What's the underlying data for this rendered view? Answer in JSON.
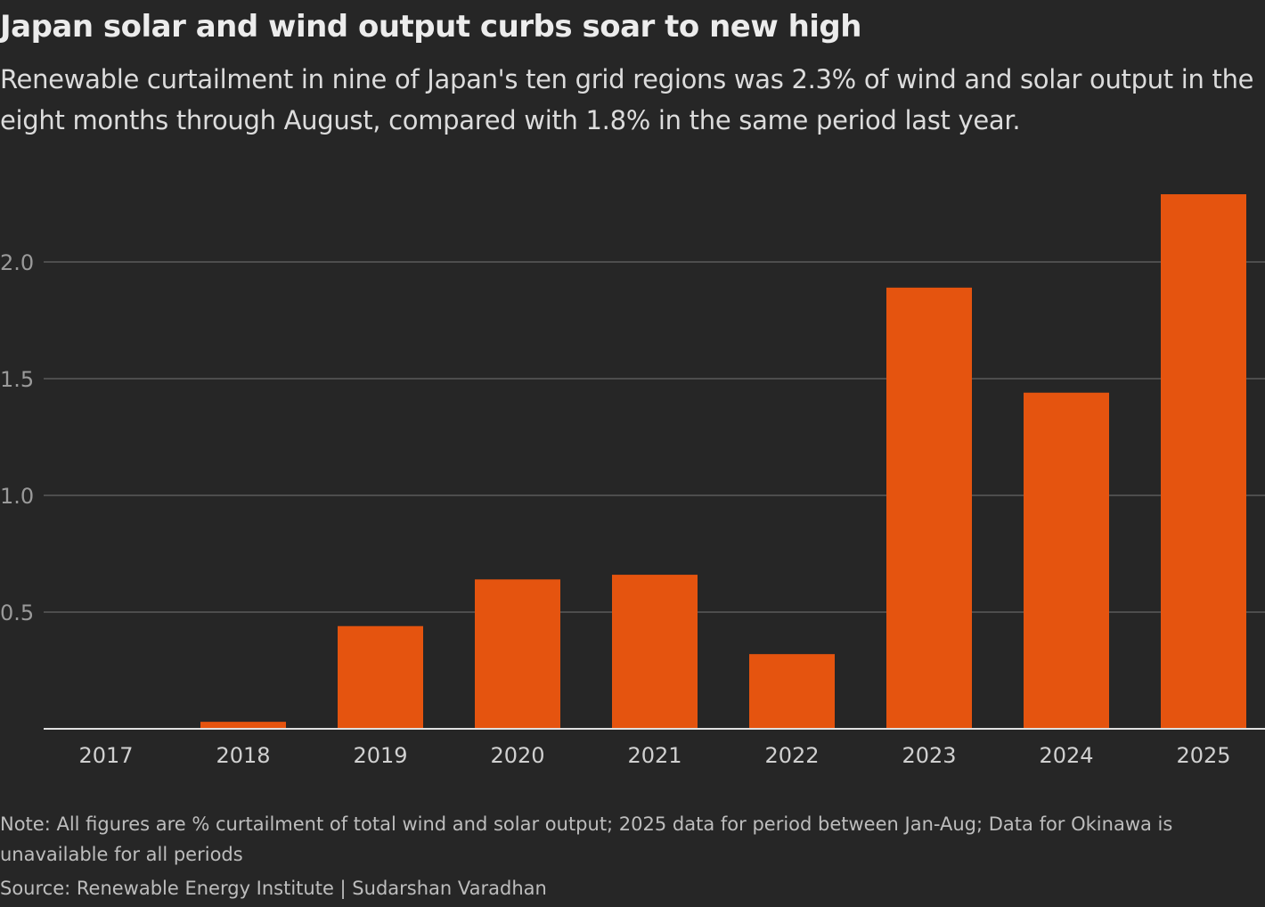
{
  "title": "Japan solar and wind output curbs soar to new high",
  "subtitle": "Renewable curtailment in nine of Japan's ten grid regions was 2.3% of wind and solar output in the eight months through August, compared with 1.8% in the same period last year.",
  "note": "Note: All figures are % curtailment of total wind and solar output; 2025 data for period between Jan-Aug; Data for Okinawa is unavailable for all periods",
  "source": "Source: Renewable Energy Institute | Sudarshan Varadhan",
  "colors": {
    "bar": "#e5540f",
    "background": "#262626",
    "grid": "#5a5a5a",
    "axis": "#e0e0e0"
  },
  "chart_data": {
    "type": "bar",
    "categories": [
      "2017",
      "2018",
      "2019",
      "2020",
      "2021",
      "2022",
      "2023",
      "2024",
      "2025"
    ],
    "values": [
      0,
      0.03,
      0.44,
      0.64,
      0.66,
      0.32,
      1.89,
      1.44,
      2.29
    ],
    "ylim": [
      0,
      2.3
    ],
    "yticks": [
      "0.5",
      "1.0",
      "1.5",
      "2.0"
    ],
    "grid": true,
    "xlabel": "",
    "ylabel": ""
  }
}
